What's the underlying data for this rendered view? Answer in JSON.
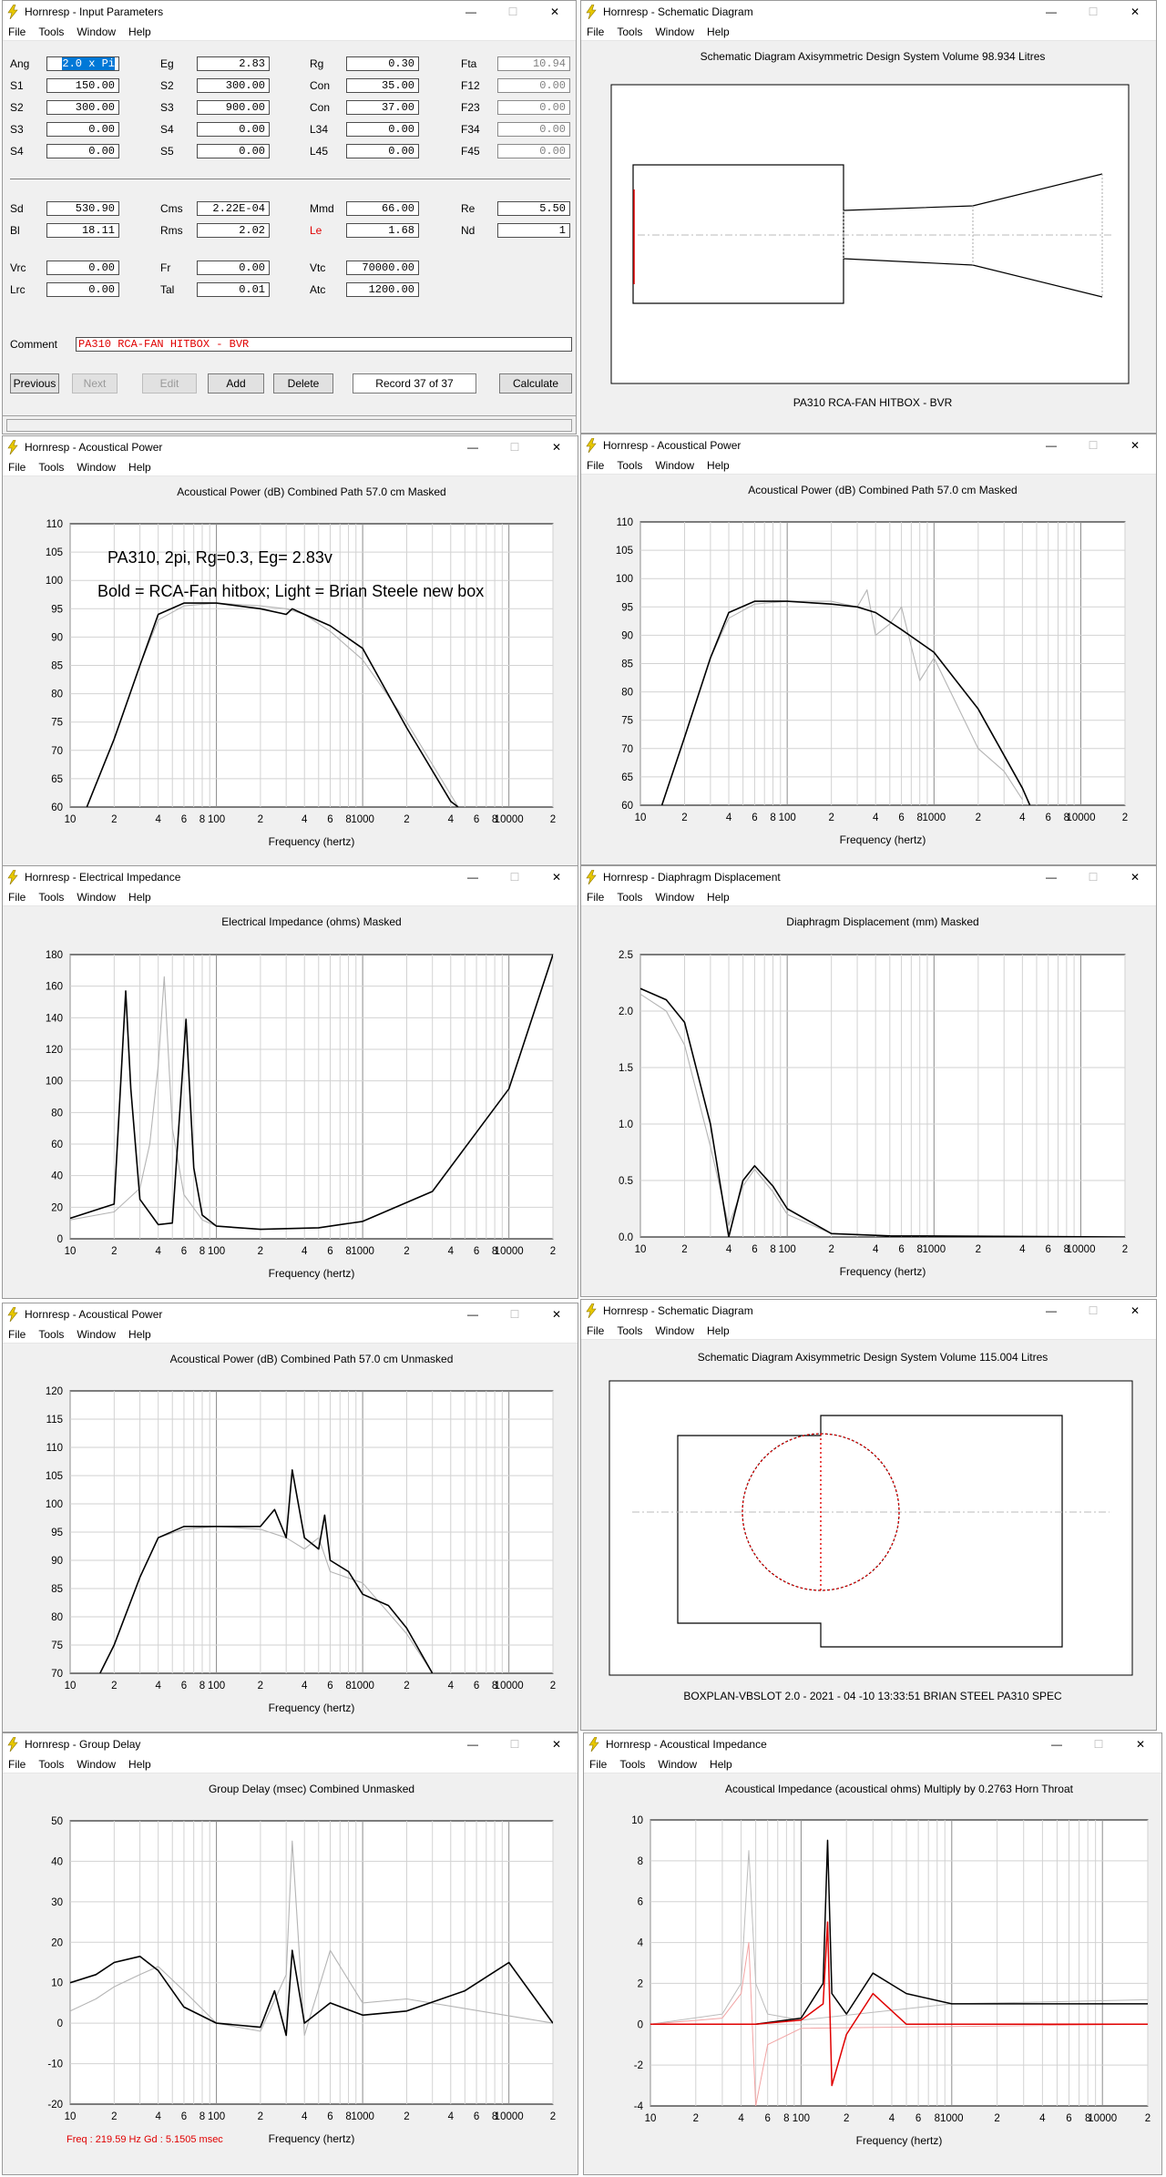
{
  "app": {
    "name": "Hornresp",
    "menus": [
      "File",
      "Tools",
      "Window",
      "Help"
    ]
  },
  "input_window": {
    "title": "Hornresp - Input Parameters",
    "rows": [
      [
        {
          "label": "Ang",
          "value": "2.0 x Pi",
          "selected": true
        },
        {
          "label": "Eg",
          "value": "2.83"
        },
        {
          "label": "Rg",
          "value": "0.30"
        },
        {
          "label": "Fta",
          "value": "10.94",
          "ro": true
        }
      ],
      [
        {
          "label": "S1",
          "value": "150.00"
        },
        {
          "label": "S2",
          "value": "300.00"
        },
        {
          "label": "Con",
          "value": "35.00"
        },
        {
          "label": "F12",
          "value": "0.00",
          "ro": true
        }
      ],
      [
        {
          "label": "S2",
          "value": "300.00"
        },
        {
          "label": "S3",
          "value": "900.00"
        },
        {
          "label": "Con",
          "value": "37.00"
        },
        {
          "label": "F23",
          "value": "0.00",
          "ro": true
        }
      ],
      [
        {
          "label": "S3",
          "value": "0.00"
        },
        {
          "label": "S4",
          "value": "0.00"
        },
        {
          "label": "L34",
          "value": "0.00"
        },
        {
          "label": "F34",
          "value": "0.00",
          "ro": true
        }
      ],
      [
        {
          "label": "S4",
          "value": "0.00"
        },
        {
          "label": "S5",
          "value": "0.00"
        },
        {
          "label": "L45",
          "value": "0.00"
        },
        {
          "label": "F45",
          "value": "0.00",
          "ro": true
        }
      ],
      [
        {
          "label": "Sd",
          "value": "530.90"
        },
        {
          "label": "Cms",
          "value": "2.22E-04"
        },
        {
          "label": "Mmd",
          "value": "66.00"
        },
        {
          "label": "Re",
          "value": "5.50"
        }
      ],
      [
        {
          "label": "Bl",
          "value": "18.11"
        },
        {
          "label": "Rms",
          "value": "2.02"
        },
        {
          "label": "Le",
          "value": "1.68",
          "red": true
        },
        {
          "label": "Nd",
          "value": "1"
        }
      ],
      [
        {
          "label": "Vrc",
          "value": "0.00"
        },
        {
          "label": "Fr",
          "value": "0.00"
        },
        {
          "label": "Vtc",
          "value": "70000.00"
        }
      ],
      [
        {
          "label": "Lrc",
          "value": "0.00"
        },
        {
          "label": "Tal",
          "value": "0.01"
        },
        {
          "label": "Atc",
          "value": "1200.00"
        }
      ]
    ],
    "comment_label": "Comment",
    "comment": "PA310 RCA-FAN HITBOX - BVR",
    "buttons": {
      "previous": "Previous",
      "next": "Next",
      "edit": "Edit",
      "add": "Add",
      "delete": "Delete",
      "calculate": "Calculate"
    },
    "record": "Record 37 of 37"
  },
  "schematic1": {
    "title": "Hornresp - Schematic Diagram",
    "heading": "Schematic Diagram   Axisymmetric Design   System Volume 98.934 Litres",
    "caption": "PA310 RCA-FAN HITBOX - BVR"
  },
  "schematic2": {
    "title": "Hornresp - Schematic Diagram",
    "heading": "Schematic Diagram   Axisymmetric Design   System Volume 115.004 Litres",
    "caption": "BOXPLAN-VBSLOT 2.0 - 2021 - 04 -10  13:33:51   BRIAN STEEL   PA310 SPEC"
  },
  "freq_ticks": [
    "10",
    "2",
    "4",
    "6",
    "8",
    "100",
    "2",
    "4",
    "6",
    "8",
    "1000",
    "2",
    "4",
    "6",
    "8",
    "10000",
    "2"
  ],
  "xlabel": "Frequency (hertz)",
  "charts": {
    "power1": {
      "title": "Hornresp - Acoustical Power",
      "heading": "Acoustical Power (dB)   Combined   Path 57.0 cm   Masked",
      "yticks": [
        "110",
        "105",
        "100",
        "95",
        "90",
        "85",
        "80",
        "75",
        "70",
        "65",
        "60"
      ],
      "annotation1": "PA310, 2pi, Rg=0.3, Eg= 2.83v",
      "annotation2": "Bold = RCA-Fan hitbox; Light = Brian Steele new box"
    },
    "power2": {
      "title": "Hornresp - Acoustical Power",
      "heading": "Acoustical Power (dB)   Combined   Path 57.0 cm   Masked",
      "yticks": [
        "110",
        "105",
        "100",
        "95",
        "90",
        "85",
        "80",
        "75",
        "70",
        "65",
        "60"
      ]
    },
    "impedance": {
      "title": "Hornresp - Electrical Impedance",
      "heading": "Electrical Impedance (ohms)   Masked",
      "yticks": [
        "180",
        "160",
        "140",
        "120",
        "100",
        "80",
        "60",
        "40",
        "20",
        "0"
      ]
    },
    "displacement": {
      "title": "Hornresp - Diaphragm Displacement",
      "heading": "Diaphragm Displacement (mm)   Masked",
      "yticks": [
        "2.5",
        "2.0",
        "1.5",
        "1.0",
        "0.5",
        "0.0"
      ]
    },
    "power3": {
      "title": "Hornresp - Acoustical Power",
      "heading": "Acoustical Power (dB)   Combined   Path 57.0 cm   Unmasked",
      "yticks": [
        "120",
        "115",
        "110",
        "105",
        "100",
        "95",
        "90",
        "85",
        "80",
        "75",
        "70"
      ]
    },
    "delay": {
      "title": "Hornresp - Group Delay",
      "heading": "Group Delay (msec)   Combined   Unmasked",
      "yticks": [
        "50",
        "40",
        "30",
        "20",
        "10",
        "0",
        "-10",
        "-20"
      ],
      "status": "Freq : 219.59 Hz     Gd : 5.1505 msec"
    },
    "acimp": {
      "title": "Hornresp - Acoustical Impedance",
      "heading": "Acoustical Impedance (acoustical ohms)   Multiply by 0.2763   Horn Throat",
      "yticks": [
        "10",
        "8",
        "6",
        "4",
        "2",
        "0",
        "-2",
        "-4"
      ]
    }
  },
  "chart_data": [
    {
      "type": "line",
      "x_scale": "log",
      "xlim": [
        10,
        20000
      ],
      "ylim": [
        60,
        110
      ],
      "ylabel": "Acoustical Power (dB)",
      "series": [
        {
          "style": "bold",
          "x": [
            13,
            20,
            30,
            40,
            60,
            100,
            200,
            300,
            330,
            400,
            600,
            1000,
            2000,
            4000,
            4500
          ],
          "y": [
            60,
            72,
            85,
            94,
            96,
            96,
            95,
            94,
            95,
            94,
            92,
            88,
            74,
            61,
            60
          ]
        },
        {
          "style": "light",
          "x": [
            13,
            20,
            30,
            40,
            60,
            100,
            200,
            300,
            400,
            600,
            1000,
            2000,
            4500
          ],
          "y": [
            60,
            72,
            85,
            93,
            95.5,
            96,
            95.5,
            95,
            94,
            91,
            86,
            75,
            60
          ]
        }
      ]
    },
    {
      "type": "line",
      "x_scale": "log",
      "xlim": [
        10,
        20000
      ],
      "ylim": [
        60,
        110
      ],
      "ylabel": "Acoustical Power (dB)",
      "series": [
        {
          "style": "bold",
          "x": [
            14,
            20,
            30,
            40,
            60,
            100,
            200,
            300,
            400,
            600,
            1000,
            2000,
            4000,
            4500
          ],
          "y": [
            60,
            72,
            86,
            94,
            96,
            96,
            95.5,
            95,
            94,
            91,
            87,
            77,
            63,
            60
          ]
        },
        {
          "style": "light",
          "x": [
            14,
            20,
            30,
            40,
            60,
            100,
            200,
            300,
            350,
            400,
            500,
            600,
            800,
            1000,
            2000,
            3000,
            4000
          ],
          "y": [
            60,
            72,
            86,
            93,
            95.5,
            96,
            96,
            95,
            98,
            90,
            92,
            95,
            82,
            86,
            70,
            66,
            61
          ]
        }
      ]
    },
    {
      "type": "line",
      "x_scale": "log",
      "xlim": [
        10,
        20000
      ],
      "ylim": [
        0,
        180
      ],
      "ylabel": "Electrical Impedance (ohms)",
      "series": [
        {
          "style": "bold",
          "x": [
            10,
            20,
            24,
            26,
            30,
            40,
            50,
            62,
            70,
            80,
            100,
            200,
            500,
            1000,
            3000,
            10000,
            20000
          ],
          "y": [
            13,
            22,
            157,
            95,
            25,
            9,
            10,
            139,
            45,
            15,
            8,
            6,
            7,
            11,
            30,
            95,
            180
          ]
        },
        {
          "style": "light",
          "x": [
            10,
            20,
            30,
            35,
            40,
            44,
            50,
            60,
            80,
            100,
            200
          ],
          "y": [
            12,
            17,
            32,
            60,
            110,
            166,
            70,
            28,
            12,
            8,
            6
          ]
        }
      ]
    },
    {
      "type": "line",
      "x_scale": "log",
      "xlim": [
        10,
        20000
      ],
      "ylim": [
        0,
        2.5
      ],
      "ylabel": "Diaphragm Displacement (mm)",
      "series": [
        {
          "style": "bold",
          "x": [
            10,
            15,
            20,
            30,
            40,
            50,
            60,
            80,
            100,
            200,
            500,
            20000
          ],
          "y": [
            2.2,
            2.1,
            1.9,
            1.0,
            0.0,
            0.5,
            0.63,
            0.45,
            0.25,
            0.03,
            0.01,
            0.0
          ]
        },
        {
          "style": "light",
          "x": [
            10,
            15,
            20,
            30,
            40,
            50,
            60,
            80,
            100,
            200,
            500,
            20000
          ],
          "y": [
            2.15,
            2.0,
            1.7,
            0.8,
            0.1,
            0.45,
            0.6,
            0.4,
            0.2,
            0.03,
            0.01,
            0.0
          ]
        }
      ]
    },
    {
      "type": "line",
      "x_scale": "log",
      "xlim": [
        10,
        20000
      ],
      "ylim": [
        70,
        120
      ],
      "ylabel": "Acoustical Power (dB)",
      "series": [
        {
          "style": "bold",
          "x": [
            16,
            20,
            30,
            40,
            60,
            100,
            200,
            250,
            300,
            330,
            400,
            500,
            550,
            600,
            800,
            1000,
            1500,
            2000,
            3000
          ],
          "y": [
            70,
            75,
            87,
            94,
            96,
            96,
            96,
            99,
            94,
            106,
            94,
            92,
            98,
            90,
            88,
            84,
            82,
            78,
            70
          ]
        },
        {
          "style": "light",
          "x": [
            16,
            20,
            30,
            40,
            60,
            100,
            200,
            300,
            400,
            500,
            600,
            1000,
            2000,
            3000
          ],
          "y": [
            70,
            75,
            87,
            94,
            95.5,
            96,
            95.5,
            94,
            92,
            94,
            88,
            86,
            77,
            70
          ]
        }
      ]
    },
    {
      "type": "line",
      "x_scale": "log",
      "xlim": [
        10,
        20000
      ],
      "ylim": [
        -20,
        50
      ],
      "ylabel": "Group Delay (msec)",
      "series": [
        {
          "style": "bold",
          "x": [
            10,
            15,
            20,
            30,
            40,
            60,
            100,
            200,
            250,
            300,
            330,
            400,
            600,
            1000,
            2000,
            5000,
            10000,
            20000
          ],
          "y": [
            10,
            12,
            15,
            16.5,
            13,
            4,
            0,
            -1,
            8,
            -3,
            18,
            0,
            5,
            2,
            3,
            8,
            15,
            0
          ]
        },
        {
          "style": "light",
          "x": [
            10,
            15,
            20,
            30,
            40,
            60,
            100,
            200,
            300,
            330,
            400,
            600,
            1000,
            2000,
            20000
          ],
          "y": [
            3,
            6,
            9,
            12,
            14,
            8,
            0,
            -2,
            12,
            45,
            -3,
            18,
            5,
            6,
            0
          ]
        }
      ]
    },
    {
      "type": "line",
      "x_scale": "log",
      "xlim": [
        10,
        20000
      ],
      "ylim": [
        -4,
        10
      ],
      "ylabel": "Acoustical Impedance",
      "series": [
        {
          "style": "black",
          "x": [
            10,
            50,
            100,
            140,
            150,
            160,
            200,
            300,
            500,
            1000,
            20000
          ],
          "y": [
            0,
            0,
            0.3,
            2,
            9,
            1.5,
            0.5,
            2.5,
            1.5,
            1.0,
            1.0
          ]
        },
        {
          "style": "red",
          "x": [
            10,
            50,
            100,
            140,
            150,
            160,
            200,
            300,
            500,
            1000,
            20000
          ],
          "y": [
            0,
            0,
            0.2,
            1,
            5,
            -3,
            -0.5,
            1.5,
            0,
            0,
            0
          ]
        },
        {
          "style": "light-black",
          "x": [
            10,
            30,
            40,
            45,
            50,
            60,
            100,
            1000,
            20000
          ],
          "y": [
            0,
            0.5,
            2,
            8.5,
            2,
            0.5,
            0.2,
            1,
            1.2
          ]
        },
        {
          "style": "light-red",
          "x": [
            10,
            30,
            40,
            45,
            50,
            60,
            100,
            20000
          ],
          "y": [
            0,
            0.3,
            1.5,
            4,
            -4,
            -1,
            -0.2,
            0
          ]
        }
      ]
    }
  ]
}
